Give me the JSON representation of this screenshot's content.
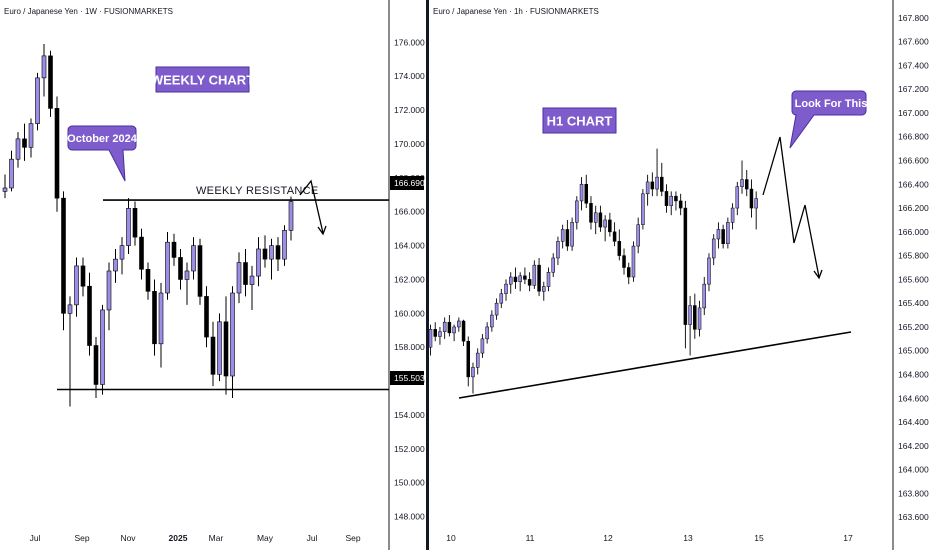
{
  "colors": {
    "bull": "#9c8ee8",
    "bear": "#000000",
    "wick": "#000000",
    "tag_fill": "#7e5ccc",
    "tag_stroke": "#4a2fa0",
    "axis_line": "#131722",
    "price_label_bg": "#000000"
  },
  "chart_data": [
    {
      "type": "candlestick",
      "title": "Euro / Japanese Yen · 1W · FUSIONMARKETS",
      "ylim": [
        146.5,
        177.2
      ],
      "yticks": [
        "148.000",
        "150.000",
        "152.000",
        "154.000",
        "156.000",
        "158.000",
        "160.000",
        "162.000",
        "164.000",
        "166.000",
        "168.000",
        "170.000",
        "172.000",
        "174.000",
        "176.000"
      ],
      "xticks": [
        {
          "label": "Jul",
          "bold": false
        },
        {
          "label": "Sep",
          "bold": false
        },
        {
          "label": "Nov",
          "bold": false
        },
        {
          "label": "2025",
          "bold": true
        },
        {
          "label": "Mar",
          "bold": false
        },
        {
          "label": "May",
          "bold": false
        },
        {
          "label": "Jul",
          "bold": false
        },
        {
          "label": "Sep",
          "bold": false
        }
      ],
      "candles": [
        [
          167.2,
          168.2,
          166.8,
          167.4
        ],
        [
          167.4,
          169.6,
          167.2,
          169.1
        ],
        [
          169.1,
          170.7,
          168.6,
          170.3
        ],
        [
          170.3,
          171.2,
          169.0,
          169.8
        ],
        [
          169.8,
          171.5,
          169.2,
          171.2
        ],
        [
          171.2,
          174.2,
          170.8,
          173.9
        ],
        [
          173.9,
          175.9,
          172.8,
          175.2
        ],
        [
          175.2,
          175.5,
          171.6,
          172.1
        ],
        [
          172.1,
          172.8,
          166.0,
          166.8
        ],
        [
          166.8,
          167.2,
          159.0,
          160.0
        ],
        [
          160.0,
          161.0,
          154.5,
          160.5
        ],
        [
          160.5,
          163.3,
          159.8,
          162.8
        ],
        [
          162.8,
          163.3,
          161.0,
          161.6
        ],
        [
          161.6,
          162.4,
          157.5,
          158.1
        ],
        [
          158.1,
          158.6,
          155.0,
          155.8
        ],
        [
          155.8,
          160.5,
          155.2,
          160.2
        ],
        [
          160.2,
          163.0,
          159.0,
          162.5
        ],
        [
          162.5,
          163.8,
          161.8,
          163.2
        ],
        [
          163.2,
          164.5,
          162.3,
          164.0
        ],
        [
          164.0,
          166.8,
          163.5,
          166.2
        ],
        [
          166.2,
          166.6,
          164.0,
          164.5
        ],
        [
          164.5,
          165.0,
          162.0,
          162.6
        ],
        [
          162.6,
          163.0,
          160.8,
          161.3
        ],
        [
          161.3,
          162.0,
          157.5,
          158.2
        ],
        [
          158.2,
          161.8,
          156.8,
          161.2
        ],
        [
          161.2,
          164.8,
          160.8,
          164.2
        ],
        [
          164.2,
          164.7,
          162.8,
          163.3
        ],
        [
          163.3,
          163.8,
          161.4,
          162.0
        ],
        [
          162.0,
          163.0,
          160.5,
          162.5
        ],
        [
          162.5,
          164.5,
          162.0,
          164.0
        ],
        [
          164.0,
          164.4,
          160.5,
          161.0
        ],
        [
          161.0,
          161.6,
          158.0,
          158.6
        ],
        [
          158.6,
          159.5,
          155.7,
          156.4
        ],
        [
          156.4,
          160.0,
          156.0,
          159.5
        ],
        [
          159.5,
          161.0,
          155.2,
          156.3
        ],
        [
          156.3,
          161.6,
          155.0,
          161.2
        ],
        [
          161.2,
          163.6,
          160.6,
          163.0
        ],
        [
          163.0,
          163.8,
          161.0,
          161.7
        ],
        [
          161.7,
          162.8,
          160.2,
          162.2
        ],
        [
          162.2,
          164.5,
          161.6,
          163.8
        ],
        [
          163.8,
          164.6,
          162.7,
          163.2
        ],
        [
          163.2,
          164.4,
          162.0,
          164.0
        ],
        [
          164.0,
          164.5,
          162.5,
          163.2
        ],
        [
          163.2,
          165.2,
          162.8,
          164.9
        ],
        [
          164.9,
          166.9,
          164.3,
          166.6
        ]
      ],
      "annotations": {
        "tag_label": "WEEKLY CHART",
        "callout_label": "October 2024",
        "resistance_label": "WEEKLY RESISTANCE",
        "resistance_price": "166.690",
        "support_price": "155.503",
        "resistance_value": 166.69,
        "support_value": 155.503
      }
    },
    {
      "type": "candlestick",
      "title": "Euro / Japanese Yen · 1h · FUSIONMARKETS",
      "ylim": [
        163.45,
        167.95
      ],
      "yticks": [
        "163.600",
        "163.800",
        "164.000",
        "164.200",
        "164.400",
        "164.600",
        "164.800",
        "165.000",
        "165.200",
        "165.400",
        "165.600",
        "165.800",
        "166.000",
        "166.200",
        "166.400",
        "166.600",
        "166.800",
        "167.000",
        "167.200",
        "167.400",
        "167.600",
        "167.800"
      ],
      "xticks": [
        {
          "label": "10",
          "bold": false
        },
        {
          "label": "11",
          "bold": false
        },
        {
          "label": "12",
          "bold": false
        },
        {
          "label": "13",
          "bold": false
        },
        {
          "label": "15",
          "bold": false
        },
        {
          "label": "17",
          "bold": false
        }
      ],
      "candles": [
        [
          165.03,
          165.22,
          164.96,
          165.18
        ],
        [
          165.18,
          165.24,
          165.08,
          165.12
        ],
        [
          165.12,
          165.2,
          165.05,
          165.16
        ],
        [
          165.16,
          165.28,
          165.1,
          165.24
        ],
        [
          165.24,
          165.3,
          165.12,
          165.15
        ],
        [
          165.15,
          165.22,
          165.08,
          165.2
        ],
        [
          165.2,
          165.28,
          165.16,
          165.25
        ],
        [
          165.25,
          165.26,
          165.04,
          165.08
        ],
        [
          165.08,
          165.12,
          164.7,
          164.78
        ],
        [
          164.78,
          164.9,
          164.64,
          164.86
        ],
        [
          164.86,
          165.02,
          164.8,
          164.98
        ],
        [
          164.98,
          165.14,
          164.94,
          165.1
        ],
        [
          165.1,
          165.24,
          165.06,
          165.2
        ],
        [
          165.2,
          165.34,
          165.16,
          165.3
        ],
        [
          165.3,
          165.44,
          165.26,
          165.4
        ],
        [
          165.4,
          165.52,
          165.36,
          165.48
        ],
        [
          165.48,
          165.6,
          165.42,
          165.56
        ],
        [
          165.56,
          165.66,
          165.48,
          165.62
        ],
        [
          165.62,
          165.7,
          165.52,
          165.58
        ],
        [
          165.58,
          165.66,
          165.5,
          165.63
        ],
        [
          165.63,
          165.7,
          165.56,
          165.6
        ],
        [
          165.6,
          165.66,
          165.5,
          165.55
        ],
        [
          165.55,
          165.76,
          165.52,
          165.72
        ],
        [
          165.72,
          165.78,
          165.46,
          165.5
        ],
        [
          165.5,
          165.58,
          165.42,
          165.54
        ],
        [
          165.54,
          165.7,
          165.5,
          165.66
        ],
        [
          165.66,
          165.82,
          165.62,
          165.78
        ],
        [
          165.78,
          165.96,
          165.72,
          165.92
        ],
        [
          165.92,
          166.06,
          165.86,
          166.02
        ],
        [
          166.02,
          166.1,
          165.84,
          165.88
        ],
        [
          165.88,
          166.12,
          165.84,
          166.08
        ],
        [
          166.08,
          166.3,
          166.02,
          166.26
        ],
        [
          166.26,
          166.46,
          166.18,
          166.4
        ],
        [
          166.4,
          166.48,
          166.2,
          166.24
        ],
        [
          166.24,
          166.3,
          166.02,
          166.08
        ],
        [
          166.08,
          166.22,
          165.98,
          166.16
        ],
        [
          166.16,
          166.22,
          166.0,
          166.04
        ],
        [
          166.04,
          166.14,
          165.92,
          166.1
        ],
        [
          166.1,
          166.16,
          165.96,
          166.0
        ],
        [
          166.0,
          166.08,
          165.88,
          165.92
        ],
        [
          165.92,
          166.02,
          165.76,
          165.8
        ],
        [
          165.8,
          165.86,
          165.64,
          165.7
        ],
        [
          165.7,
          165.74,
          165.56,
          165.62
        ],
        [
          165.62,
          165.92,
          165.58,
          165.88
        ],
        [
          165.88,
          166.12,
          165.82,
          166.06
        ],
        [
          166.06,
          166.36,
          166.02,
          166.32
        ],
        [
          166.32,
          166.48,
          166.22,
          166.42
        ],
        [
          166.42,
          166.5,
          166.3,
          166.36
        ],
        [
          166.36,
          166.7,
          166.3,
          166.46
        ],
        [
          166.46,
          166.58,
          166.3,
          166.34
        ],
        [
          166.34,
          166.4,
          166.16,
          166.22
        ],
        [
          166.22,
          166.34,
          166.14,
          166.3
        ],
        [
          166.3,
          166.34,
          166.18,
          166.26
        ],
        [
          166.26,
          166.32,
          166.14,
          166.2
        ],
        [
          166.2,
          166.26,
          165.02,
          165.22
        ],
        [
          165.22,
          165.46,
          164.96,
          165.38
        ],
        [
          165.38,
          165.48,
          165.1,
          165.18
        ],
        [
          165.18,
          165.42,
          165.12,
          165.36
        ],
        [
          165.36,
          165.62,
          165.3,
          165.56
        ],
        [
          165.56,
          165.82,
          165.5,
          165.78
        ],
        [
          165.78,
          165.98,
          165.72,
          165.94
        ],
        [
          165.94,
          166.08,
          165.86,
          166.02
        ],
        [
          166.02,
          166.06,
          165.86,
          165.9
        ],
        [
          165.9,
          166.12,
          165.86,
          166.08
        ],
        [
          166.08,
          166.24,
          166.02,
          166.2
        ],
        [
          166.2,
          166.42,
          166.14,
          166.38
        ],
        [
          166.38,
          166.6,
          166.32,
          166.44
        ],
        [
          166.44,
          166.52,
          166.3,
          166.36
        ],
        [
          166.36,
          166.44,
          166.12,
          166.2
        ],
        [
          166.2,
          166.34,
          166.02,
          166.28
        ]
      ],
      "annotations": {
        "tag_label": "H1 CHART",
        "callout_label": "Look For This"
      }
    }
  ]
}
